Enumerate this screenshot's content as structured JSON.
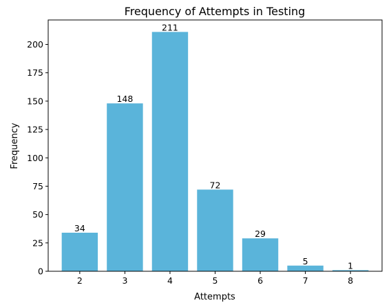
{
  "chart_data": {
    "type": "bar",
    "title": "Frequency of Attempts in Testing",
    "xlabel": "Attempts",
    "ylabel": "Frequency",
    "categories": [
      "2",
      "3",
      "4",
      "5",
      "6",
      "7",
      "8"
    ],
    "values": [
      34,
      148,
      211,
      72,
      29,
      5,
      1
    ],
    "data_labels": [
      "34",
      "148",
      "211",
      "72",
      "29",
      "5",
      "1"
    ],
    "yticks": [
      0,
      25,
      50,
      75,
      100,
      125,
      150,
      175,
      200
    ],
    "ylim": [
      0,
      221.55
    ],
    "grid": false,
    "legend": "none",
    "bar_color": "#5ab4da"
  }
}
